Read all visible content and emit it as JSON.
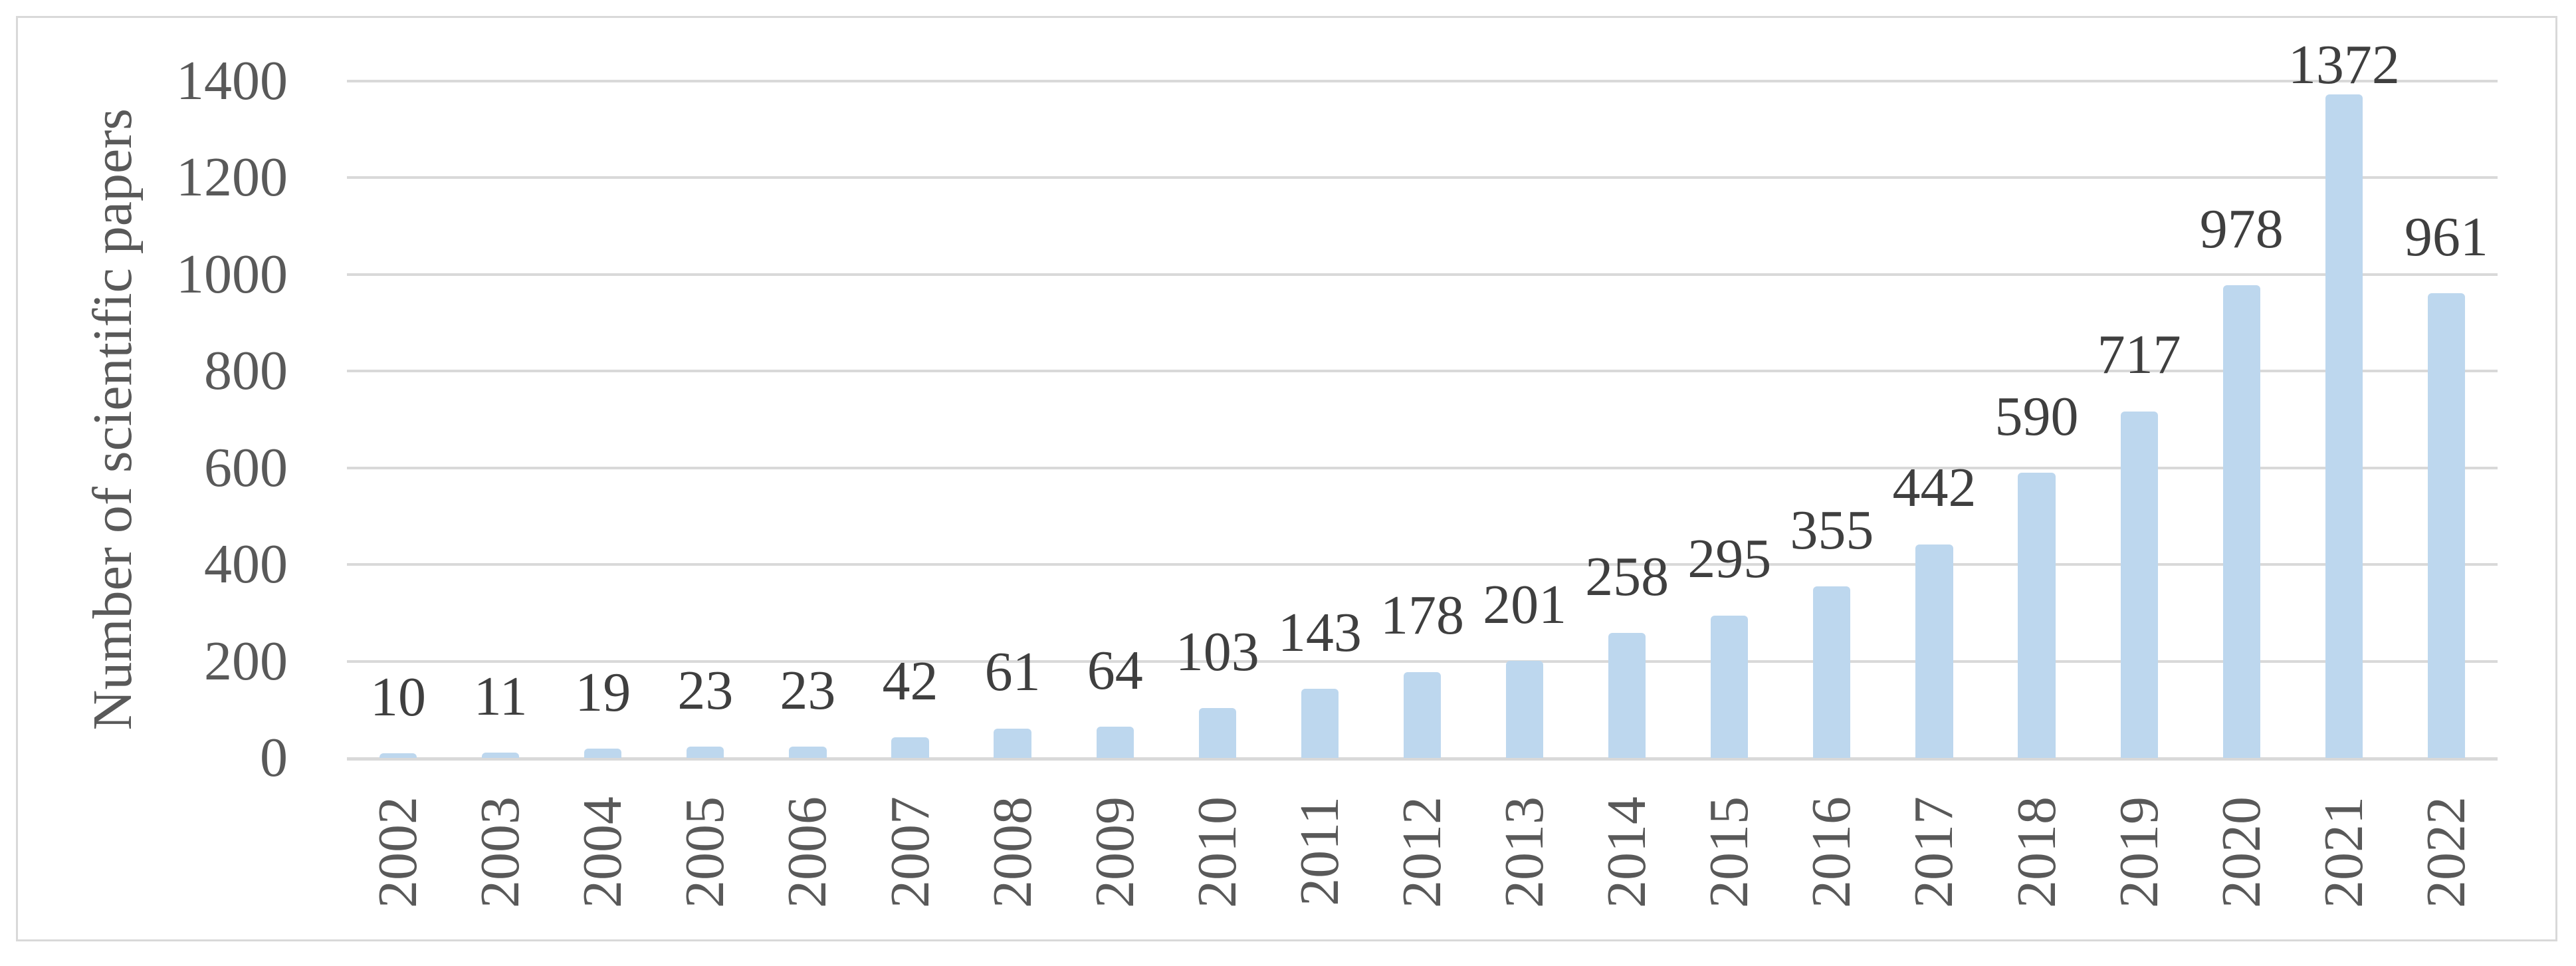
{
  "figure": {
    "background_color": "#FFFFFF",
    "frame_border_color": "#D9D9D9"
  },
  "chart_data": {
    "type": "bar",
    "title": "",
    "categories": [
      "2002",
      "2003",
      "2004",
      "2005",
      "2006",
      "2007",
      "2008",
      "2009",
      "2010",
      "2011",
      "2012",
      "2013",
      "2014",
      "2015",
      "2016",
      "2017",
      "2018",
      "2019",
      "2020",
      "2021",
      "2022"
    ],
    "values": [
      10,
      11,
      19,
      23,
      23,
      42,
      61,
      64,
      103,
      143,
      178,
      201,
      258,
      295,
      355,
      442,
      590,
      717,
      978,
      1372,
      961
    ],
    "xlabel": "",
    "ylabel": "Number of scientific papers",
    "ylim": [
      0,
      1400
    ],
    "yticks": [
      0,
      200,
      400,
      600,
      800,
      1000,
      1200,
      1400
    ],
    "grid": true,
    "legend": "none",
    "data_labels_shown": true,
    "bar_color": "#BDD7EE",
    "gridline_color": "#D9D9D9",
    "axis_line_color": "#D9D9D9",
    "tick_label_color": "#595959",
    "data_label_color": "#3F3F3F"
  }
}
